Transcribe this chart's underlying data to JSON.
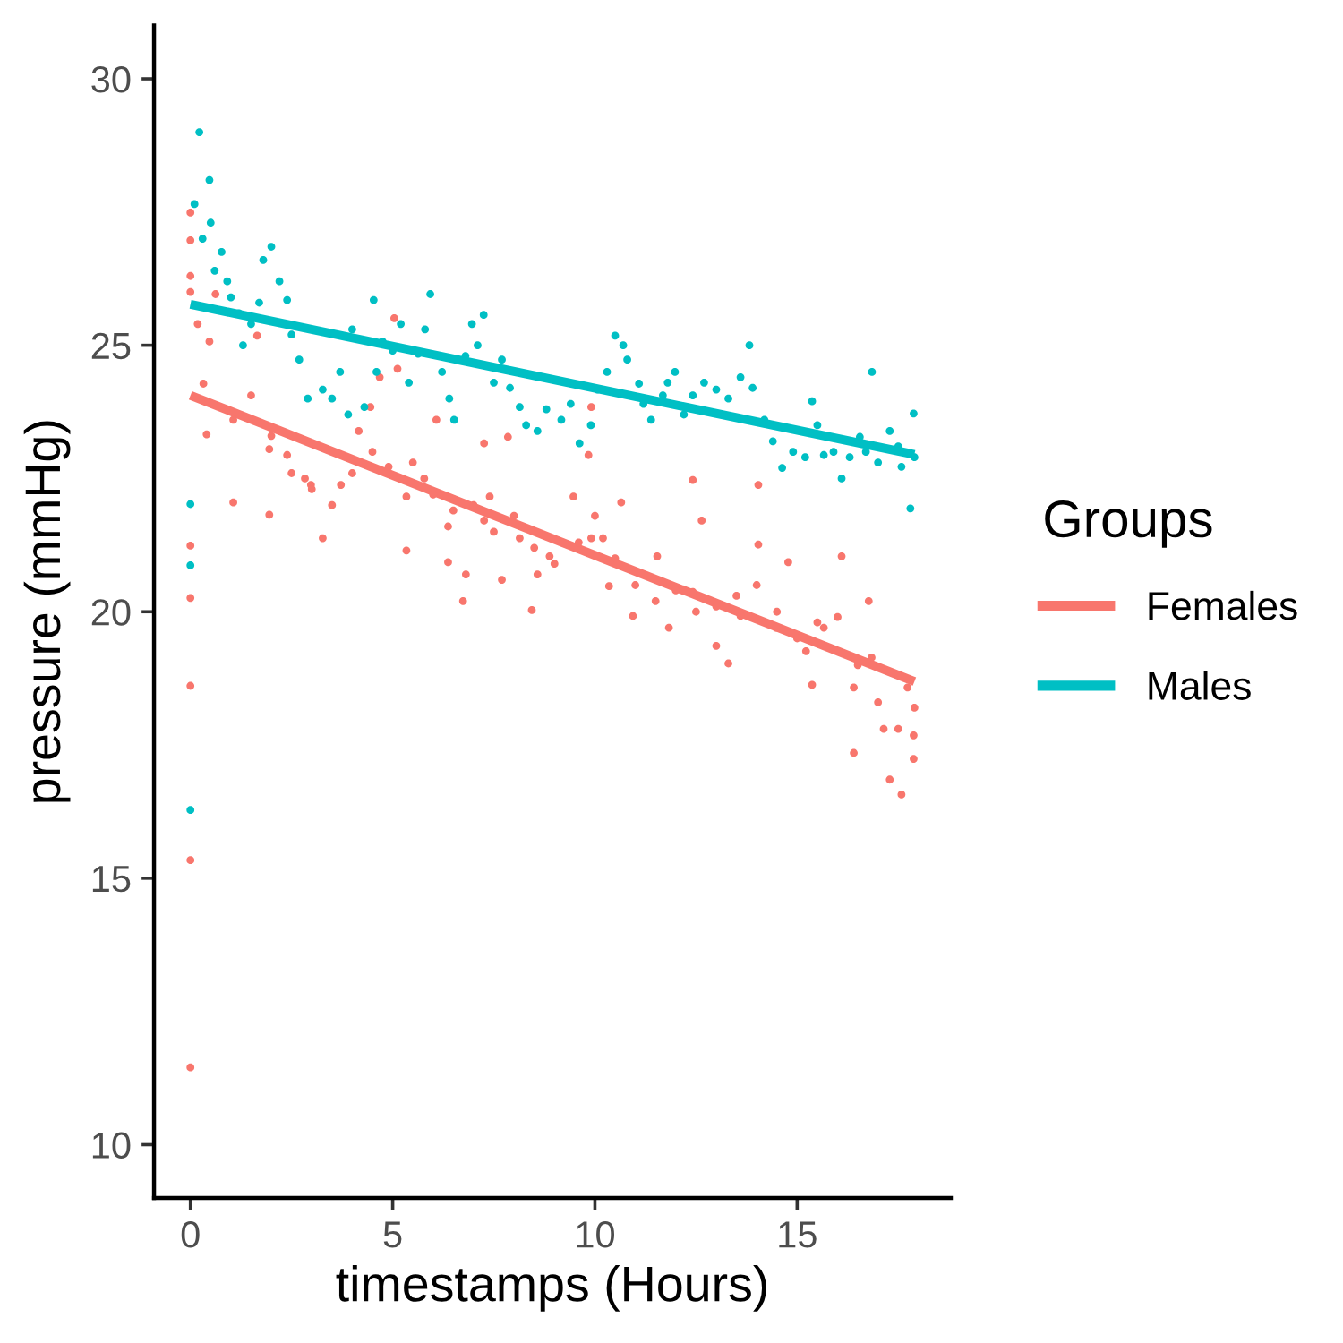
{
  "chart_data": {
    "type": "scatter",
    "xlabel": "timestamps (Hours)",
    "ylabel": "pressure (mmHg)",
    "legend_title": "Groups",
    "xlim": [
      -0.9,
      18.8
    ],
    "ylim": [
      9,
      31
    ],
    "xticks": [
      0,
      5,
      10,
      15
    ],
    "yticks": [
      10,
      15,
      20,
      25,
      30
    ],
    "legend": "right",
    "series": [
      {
        "marker": "circle",
        "color": "#f8766d",
        "x": [
          0,
          0,
          0,
          0,
          0,
          0,
          0,
          0,
          0,
          0.18,
          0.32,
          0.4,
          0.47,
          0.62,
          1.06,
          1.06,
          1.5,
          1.65,
          1.95,
          1.95,
          2.0,
          2.39,
          2.5,
          2.83,
          2.98,
          3.0,
          3.27,
          3.5,
          3.72,
          4.0,
          4.16,
          4.45,
          4.5,
          4.68,
          4.9,
          5.04,
          5.12,
          5.34,
          5.34,
          5.5,
          5.78,
          6.0,
          6.08,
          6.37,
          6.37,
          6.5,
          6.74,
          6.81,
          7.0,
          7.26,
          7.26,
          7.4,
          7.5,
          7.7,
          7.85,
          8.0,
          8.14,
          8.44,
          8.5,
          8.58,
          8.88,
          9.0,
          9.47,
          9.6,
          9.84,
          9.91,
          9.91,
          10.0,
          10.2,
          10.35,
          10.5,
          10.65,
          10.94,
          11.0,
          11.5,
          11.54,
          11.83,
          12.0,
          12.42,
          12.42,
          12.5,
          12.64,
          13.0,
          13.0,
          13.3,
          13.5,
          13.6,
          14.0,
          14.04,
          14.04,
          14.48,
          14.5,
          14.78,
          15.0,
          15.22,
          15.37,
          15.5,
          15.66,
          16.0,
          16.1,
          16.4,
          16.4,
          16.5,
          16.77,
          16.84,
          17.0,
          17.14,
          17.29,
          17.5,
          17.58,
          17.73,
          17.88,
          17.88,
          17.9
        ],
        "values": [
          27.49,
          26.97,
          26.3,
          26.0,
          21.24,
          20.26,
          18.61,
          15.34,
          11.45,
          25.4,
          24.28,
          23.33,
          25.07,
          25.96,
          23.6,
          22.05,
          24.06,
          25.18,
          23.05,
          21.82,
          23.3,
          22.94,
          22.6,
          22.5,
          22.38,
          22.3,
          21.38,
          22.0,
          22.38,
          22.6,
          23.39,
          23.84,
          23.0,
          24.4,
          22.72,
          25.51,
          24.56,
          22.16,
          21.15,
          22.8,
          22.5,
          22.2,
          23.6,
          21.6,
          20.93,
          21.9,
          20.2,
          20.7,
          22.0,
          23.16,
          21.71,
          22.16,
          21.5,
          20.6,
          23.28,
          21.8,
          21.38,
          20.03,
          21.2,
          20.7,
          21.04,
          20.9,
          22.16,
          21.3,
          22.94,
          23.84,
          21.38,
          21.8,
          21.38,
          20.48,
          21.0,
          22.05,
          19.92,
          20.5,
          20.2,
          21.04,
          19.7,
          20.4,
          20.37,
          22.47,
          20.0,
          21.71,
          19.36,
          20.1,
          19.03,
          20.3,
          19.92,
          20.5,
          21.26,
          22.38,
          19.7,
          20.0,
          20.93,
          19.5,
          19.26,
          18.63,
          19.8,
          19.7,
          19.9,
          21.04,
          17.35,
          18.58,
          19.0,
          20.2,
          19.14,
          18.3,
          17.8,
          16.85,
          17.8,
          16.57,
          18.58,
          17.68,
          17.24,
          18.2
        ]
      },
      {
        "marker": "circle",
        "color": "#00bfc4",
        "x": [
          0,
          0,
          0,
          0.1,
          0.22,
          0.3,
          0.47,
          0.5,
          0.6,
          0.77,
          0.91,
          1.0,
          1.2,
          1.3,
          1.5,
          1.7,
          1.8,
          2.0,
          2.2,
          2.39,
          2.5,
          2.69,
          2.9,
          3.27,
          3.5,
          3.7,
          3.9,
          4.0,
          4.3,
          4.53,
          4.6,
          4.75,
          5.0,
          5.2,
          5.4,
          5.63,
          5.8,
          5.93,
          6.22,
          6.4,
          6.52,
          6.8,
          6.96,
          7.1,
          7.25,
          7.5,
          7.7,
          7.9,
          8.14,
          8.3,
          8.58,
          8.8,
          9.17,
          9.4,
          9.62,
          9.9,
          10.06,
          10.3,
          10.5,
          10.7,
          10.8,
          11.09,
          11.2,
          11.39,
          11.68,
          11.8,
          11.98,
          12.2,
          12.42,
          12.7,
          13.0,
          13.3,
          13.6,
          13.82,
          13.9,
          14.19,
          14.4,
          14.63,
          14.9,
          15.2,
          15.37,
          15.5,
          15.66,
          15.9,
          16.1,
          16.3,
          16.55,
          16.7,
          16.85,
          17.0,
          17.29,
          17.5,
          17.58,
          17.8,
          17.88,
          17.9
        ],
        "values": [
          22.02,
          20.87,
          16.28,
          27.65,
          29.0,
          27.0,
          28.1,
          27.3,
          26.4,
          26.75,
          26.2,
          25.9,
          25.6,
          25.0,
          25.4,
          25.8,
          26.6,
          26.85,
          26.2,
          25.85,
          25.2,
          24.73,
          24.0,
          24.17,
          24.0,
          24.5,
          23.7,
          25.3,
          23.84,
          25.85,
          24.5,
          25.07,
          24.9,
          25.4,
          24.3,
          24.84,
          25.3,
          25.96,
          24.5,
          24.0,
          23.6,
          24.8,
          25.4,
          25.0,
          25.57,
          24.3,
          24.73,
          24.2,
          23.84,
          23.5,
          23.39,
          23.8,
          23.6,
          23.9,
          23.16,
          23.5,
          24.17,
          24.5,
          25.18,
          25.0,
          24.73,
          24.28,
          23.9,
          23.6,
          24.06,
          24.3,
          24.5,
          23.7,
          24.06,
          24.3,
          24.17,
          24.0,
          24.4,
          25.0,
          24.2,
          23.6,
          23.2,
          22.7,
          23.0,
          22.9,
          23.95,
          23.5,
          22.94,
          23.0,
          22.5,
          22.9,
          23.28,
          23.0,
          24.5,
          22.8,
          23.39,
          23.1,
          22.72,
          21.94,
          23.72,
          22.9
        ]
      },
      {
        "type": "line",
        "name": "Females",
        "color": "#f8766d",
        "x": [
          0,
          17.9
        ],
        "values": [
          24.06,
          18.69
        ]
      },
      {
        "type": "line",
        "name": "Males",
        "color": "#00bfc4",
        "x": [
          0,
          17.9
        ],
        "values": [
          25.77,
          22.95
        ]
      }
    ]
  }
}
